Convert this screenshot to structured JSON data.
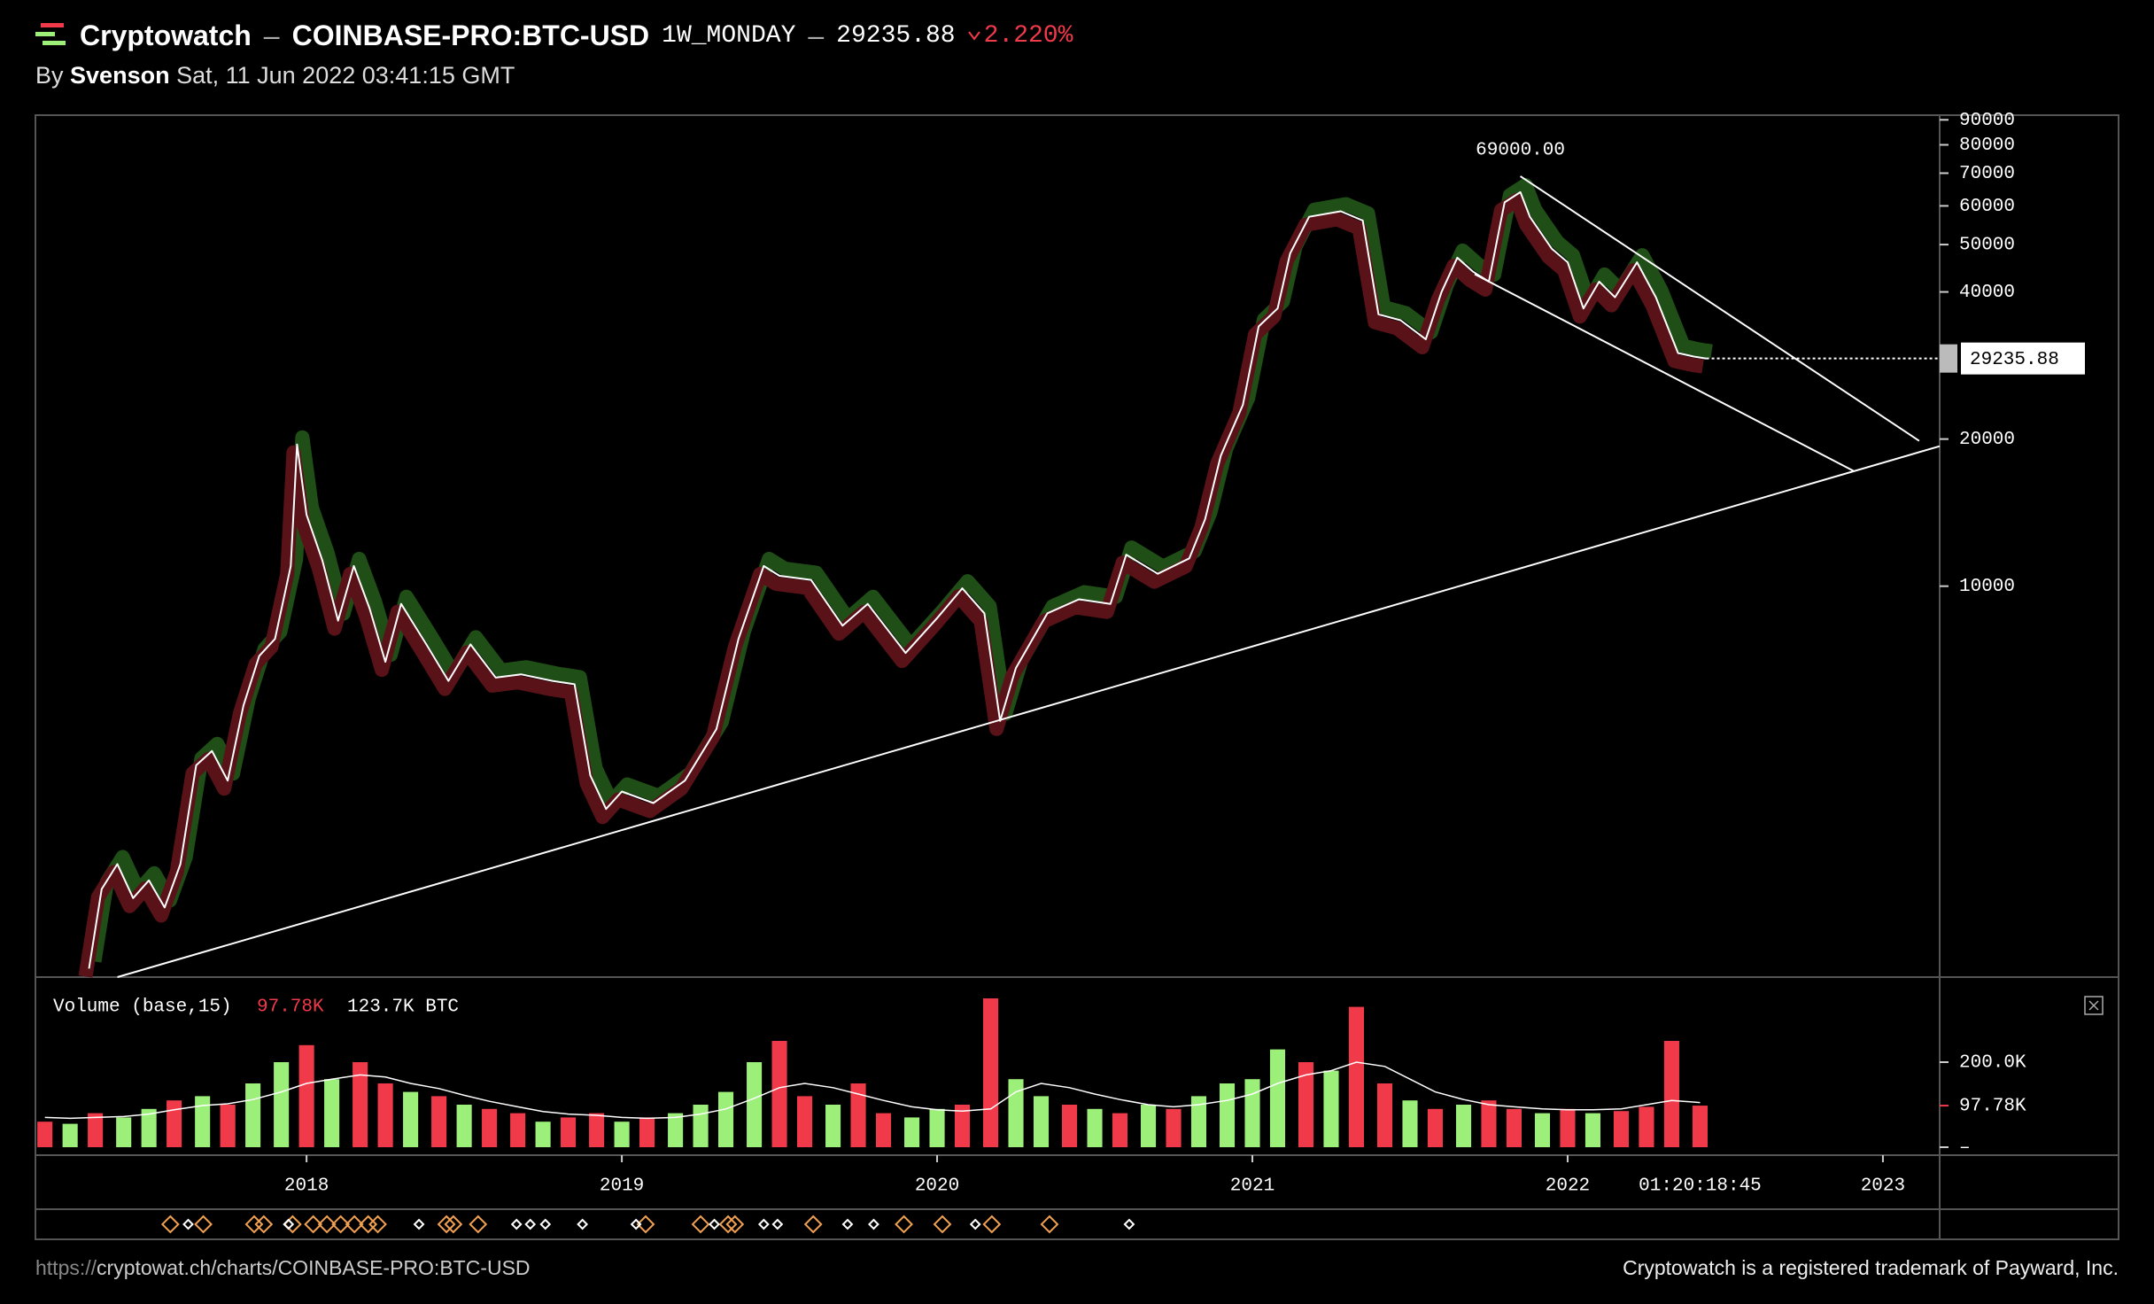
{
  "header": {
    "brand": "Cryptowatch",
    "separator": "–",
    "symbol": "COINBASE-PRO:BTC-USD",
    "interval": "1W_MONDAY",
    "change": {
      "value": 2.22,
      "label": "2.220%"
    },
    "by": "By",
    "author": "Svenson",
    "date": "Sat, 11 Jun 2022 03:41:15 GMT"
  },
  "footer": {
    "url_prefix": "https://",
    "url": "cryptowat.ch/charts/COINBASE-PRO:BTC-USD",
    "trademark": "Cryptowatch is a registered trademark of Payward, Inc."
  },
  "chart_data": [
    {
      "type": "line",
      "log_y": true,
      "color": "#ffffff",
      "up_color": "#1f4f16",
      "down_color": "#5a1219",
      "xlim": [
        2017.14,
        2023.18
      ],
      "ylim": [
        1585,
        92000
      ],
      "yticks": [
        10000,
        20000,
        40000,
        50000,
        60000,
        70000,
        80000,
        90000
      ],
      "x": [
        2017.31,
        2017.35,
        2017.4,
        2017.45,
        2017.5,
        2017.55,
        2017.6,
        2017.65,
        2017.7,
        2017.75,
        2017.8,
        2017.85,
        2017.9,
        2017.95,
        2017.97,
        2018.0,
        2018.05,
        2018.1,
        2018.15,
        2018.2,
        2018.25,
        2018.3,
        2018.38,
        2018.45,
        2018.52,
        2018.6,
        2018.68,
        2018.78,
        2018.85,
        2018.9,
        2018.95,
        2019.0,
        2019.1,
        2019.2,
        2019.3,
        2019.37,
        2019.45,
        2019.5,
        2019.6,
        2019.7,
        2019.78,
        2019.9,
        2020.0,
        2020.08,
        2020.15,
        2020.2,
        2020.25,
        2020.35,
        2020.45,
        2020.55,
        2020.6,
        2020.7,
        2020.8,
        2020.85,
        2020.9,
        2020.97,
        2021.02,
        2021.08,
        2021.12,
        2021.18,
        2021.28,
        2021.35,
        2021.4,
        2021.47,
        2021.55,
        2021.6,
        2021.65,
        2021.7,
        2021.75,
        2021.8,
        2021.85,
        2021.88,
        2021.95,
        2022.0,
        2022.05,
        2022.1,
        2022.15,
        2022.22,
        2022.28,
        2022.35,
        2022.4,
        2022.44
      ],
      "values": [
        1650,
        2400,
        2700,
        2300,
        2500,
        2200,
        2700,
        4300,
        4600,
        4000,
        5700,
        7200,
        7800,
        11000,
        19500,
        14000,
        11300,
        8500,
        11000,
        9000,
        7000,
        9200,
        7600,
        6400,
        7600,
        6500,
        6600,
        6400,
        6300,
        4100,
        3500,
        3800,
        3600,
        4000,
        5100,
        7800,
        11000,
        10500,
        10300,
        8300,
        9200,
        7300,
        8600,
        9900,
        8800,
        5300,
        6800,
        8800,
        9400,
        9200,
        11600,
        10600,
        11400,
        13700,
        18500,
        23500,
        34000,
        37000,
        48000,
        57000,
        58500,
        56000,
        36000,
        35000,
        32000,
        40000,
        47000,
        44000,
        42000,
        61000,
        64000,
        57000,
        49000,
        46000,
        37000,
        42000,
        39000,
        46000,
        39000,
        30000,
        29500,
        29235.88
      ],
      "last_value": 29235.88,
      "annotation": {
        "x": 2021.85,
        "value": 69000,
        "label": "69000.00"
      },
      "trendlines": [
        [
          [
            2017.4,
            1585
          ],
          [
            2023.18,
            19340
          ]
        ],
        [
          [
            2021.85,
            69000
          ],
          [
            2023.115,
            19830
          ]
        ],
        [
          [
            2021.705,
            43500
          ],
          [
            2022.907,
            17210
          ]
        ]
      ]
    },
    {
      "type": "bar",
      "name": "Volume (base,15)",
      "legend_value": "97.78K",
      "legend_total": "123.7K BTC",
      "up_color": "#9cf07a",
      "down_color": "#f03a4a",
      "ma_color": "#ffffff",
      "xlim": [
        2017.14,
        2023.18
      ],
      "xticks": [
        2018,
        2019,
        2020,
        2021,
        2022,
        2023
      ],
      "countdown": "01:20:18:45",
      "ylim": [
        0,
        400000
      ],
      "yticks": [
        {
          "value": 0,
          "label": "–"
        },
        {
          "value": 97780,
          "label": "97.78K"
        },
        {
          "value": 200000,
          "label": "200.0K"
        }
      ],
      "x": [
        2017.17,
        2017.25,
        2017.33,
        2017.42,
        2017.5,
        2017.58,
        2017.67,
        2017.75,
        2017.83,
        2017.92,
        2018.0,
        2018.08,
        2018.17,
        2018.25,
        2018.33,
        2018.42,
        2018.5,
        2018.58,
        2018.67,
        2018.75,
        2018.83,
        2018.92,
        2019.0,
        2019.08,
        2019.17,
        2019.25,
        2019.33,
        2019.42,
        2019.5,
        2019.58,
        2019.67,
        2019.75,
        2019.83,
        2019.92,
        2020.0,
        2020.08,
        2020.17,
        2020.25,
        2020.33,
        2020.42,
        2020.5,
        2020.58,
        2020.67,
        2020.75,
        2020.83,
        2020.92,
        2021.0,
        2021.08,
        2021.17,
        2021.25,
        2021.33,
        2021.42,
        2021.5,
        2021.58,
        2021.67,
        2021.75,
        2021.83,
        2021.92,
        2022.0,
        2022.08,
        2022.17,
        2022.25,
        2022.33,
        2022.42
      ],
      "values": [
        60000,
        55000,
        80000,
        70000,
        90000,
        110000,
        120000,
        100000,
        150000,
        200000,
        240000,
        160000,
        200000,
        150000,
        130000,
        120000,
        100000,
        90000,
        80000,
        60000,
        70000,
        80000,
        60000,
        70000,
        80000,
        100000,
        130000,
        200000,
        250000,
        120000,
        100000,
        150000,
        80000,
        70000,
        90000,
        100000,
        350000,
        160000,
        120000,
        100000,
        90000,
        80000,
        100000,
        90000,
        120000,
        150000,
        160000,
        230000,
        200000,
        180000,
        330000,
        150000,
        110000,
        90000,
        100000,
        110000,
        90000,
        80000,
        90000,
        80000,
        85000,
        95000,
        250000,
        97780
      ],
      "direction": [
        "down",
        "up",
        "down",
        "up",
        "up",
        "down",
        "up",
        "down",
        "up",
        "up",
        "down",
        "up",
        "down",
        "down",
        "up",
        "down",
        "up",
        "down",
        "down",
        "up",
        "down",
        "down",
        "up",
        "down",
        "up",
        "up",
        "up",
        "up",
        "down",
        "down",
        "up",
        "down",
        "down",
        "up",
        "up",
        "down",
        "down",
        "up",
        "up",
        "down",
        "up",
        "down",
        "up",
        "down",
        "up",
        "up",
        "up",
        "up",
        "down",
        "up",
        "down",
        "down",
        "up",
        "down",
        "up",
        "down",
        "down",
        "up",
        "down",
        "up",
        "down",
        "down",
        "down",
        "down"
      ],
      "ma": [
        70000,
        68000,
        70000,
        72000,
        78000,
        88000,
        98000,
        102000,
        112000,
        130000,
        150000,
        160000,
        170000,
        165000,
        150000,
        138000,
        122000,
        108000,
        95000,
        84000,
        78000,
        75000,
        70000,
        68000,
        70000,
        78000,
        90000,
        115000,
        140000,
        150000,
        140000,
        125000,
        110000,
        95000,
        88000,
        85000,
        90000,
        130000,
        150000,
        140000,
        125000,
        112000,
        100000,
        95000,
        100000,
        110000,
        125000,
        150000,
        170000,
        180000,
        200000,
        190000,
        160000,
        130000,
        112000,
        100000,
        95000,
        90000,
        88000,
        88000,
        90000,
        100000,
        110000,
        105000
      ]
    }
  ]
}
